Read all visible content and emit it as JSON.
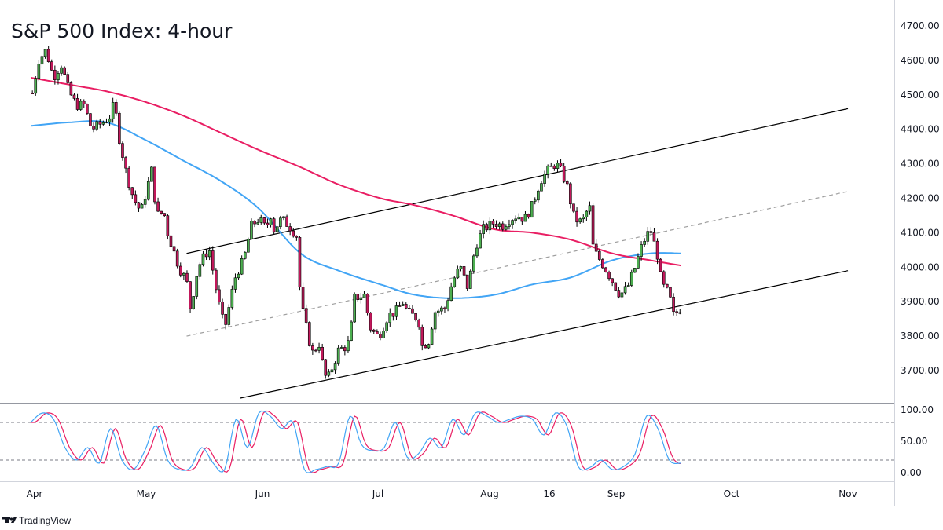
{
  "title": "S&P 500 Index: 4-hour",
  "brand": {
    "logo": "tradingview-logo",
    "name": "TradingView"
  },
  "colors": {
    "up": "#4caf50",
    "down": "#c2185b",
    "ma_fast": "#42a5f5",
    "ma_slow": "#e91e63",
    "stoch_k": "#42a5f5",
    "stoch_d": "#e91e63",
    "channel": "#000000",
    "midline": "#9e9e9e"
  },
  "chart_data": [
    {
      "type": "candlestick",
      "title": "S&P 500 Index: 4-hour",
      "x_ticks": [
        "Apr",
        "May",
        "Jun",
        "Jul",
        "Aug",
        "16",
        "Sep",
        "Oct",
        "Nov"
      ],
      "y_ticks": [
        "4700.00",
        "4600.00",
        "4500.00",
        "4400.00",
        "4300.00",
        "4200.00",
        "4100.00",
        "4000.00",
        "3900.00",
        "3800.00",
        "3700.00"
      ],
      "ylim": [
        3625,
        4735
      ],
      "price_path": [
        [
          "Mar 31",
          4480
        ],
        [
          "Apr 2",
          4600
        ],
        [
          "Apr 4",
          4630
        ],
        [
          "Apr 6",
          4550
        ],
        [
          "Apr 8",
          4590
        ],
        [
          "Apr 10",
          4510
        ],
        [
          "Apr 12",
          4470
        ],
        [
          "Apr 14",
          4470
        ],
        [
          "Apr 16",
          4400
        ],
        [
          "Apr 19",
          4420
        ],
        [
          "Apr 21",
          4440
        ],
        [
          "Apr 22",
          4480
        ],
        [
          "Apr 23",
          4390
        ],
        [
          "Apr 25",
          4280
        ],
        [
          "Apr 27",
          4200
        ],
        [
          "Apr 29",
          4160
        ],
        [
          "May 2",
          4290
        ],
        [
          "May 3",
          4150
        ],
        [
          "May 5",
          4160
        ],
        [
          "May 6",
          4100
        ],
        [
          "May 9",
          4000
        ],
        [
          "May 11",
          3960
        ],
        [
          "May 12",
          3880
        ],
        [
          "May 14",
          4000
        ],
        [
          "May 16",
          4040
        ],
        [
          "May 17",
          4050
        ],
        [
          "May 19",
          3920
        ],
        [
          "May 21",
          3820
        ],
        [
          "May 23",
          3930
        ],
        [
          "May 24",
          3980
        ],
        [
          "May 26",
          4020
        ],
        [
          "May 28",
          4120
        ],
        [
          "May 30",
          4140
        ],
        [
          "Jun 1",
          4110
        ],
        [
          "Jun 2",
          4160
        ],
        [
          "Jun 3",
          4110
        ],
        [
          "Jun 5",
          4140
        ],
        [
          "Jun 7",
          4120
        ],
        [
          "Jun 9",
          4090
        ],
        [
          "Jun 10",
          3900
        ],
        [
          "Jun 13",
          3750
        ],
        [
          "Jun 15",
          3780
        ],
        [
          "Jun 16",
          3700
        ],
        [
          "Jun 17",
          3670
        ],
        [
          "Jun 20",
          3760
        ],
        [
          "Jun 22",
          3770
        ],
        [
          "Jun 23",
          3790
        ],
        [
          "Jun 24",
          3910
        ],
        [
          "Jun 27",
          3920
        ],
        [
          "Jun 28",
          3830
        ],
        [
          "Jun 30",
          3800
        ],
        [
          "Jul 1",
          3810
        ],
        [
          "Jul 3",
          3860
        ],
        [
          "Jul 5",
          3870
        ],
        [
          "Jul 7",
          3900
        ],
        [
          "Jul 8",
          3870
        ],
        [
          "Jul 11",
          3850
        ],
        [
          "Jul 12",
          3770
        ],
        [
          "Jul 14",
          3790
        ],
        [
          "Jul 15",
          3870
        ],
        [
          "Jul 18",
          3880
        ],
        [
          "Jul 20",
          3960
        ],
        [
          "Jul 22",
          4000
        ],
        [
          "Jul 24",
          3940
        ],
        [
          "Jul 26",
          4060
        ],
        [
          "Jul 28",
          4110
        ],
        [
          "Jul 31",
          4130
        ],
        [
          "Aug 2",
          4120
        ],
        [
          "Aug 4",
          4140
        ],
        [
          "Aug 6",
          4150
        ],
        [
          "Aug 8",
          4140
        ],
        [
          "Aug 10",
          4180
        ],
        [
          "Aug 12",
          4250
        ],
        [
          "Aug 14",
          4280
        ],
        [
          "Aug 16",
          4300
        ],
        [
          "Aug 17",
          4290
        ],
        [
          "Aug 19",
          4240
        ],
        [
          "Aug 21",
          4140
        ],
        [
          "Aug 23",
          4130
        ],
        [
          "Aug 25",
          4180
        ],
        [
          "Aug 26",
          4050
        ],
        [
          "Aug 29",
          4000
        ],
        [
          "Aug 31",
          3960
        ],
        [
          "Sep 1",
          3940
        ],
        [
          "Sep 2",
          3920
        ],
        [
          "Sep 4",
          3940
        ],
        [
          "Sep 6",
          4000
        ],
        [
          "Sep 8",
          4070
        ],
        [
          "Sep 10",
          4110
        ],
        [
          "Sep 12",
          4030
        ],
        [
          "Sep 13",
          3950
        ],
        [
          "Sep 15",
          3920
        ],
        [
          "Sep 16",
          3860
        ],
        [
          "Sep 18",
          3880
        ]
      ],
      "ma_fast_path": [
        [
          "Mar 31",
          4410
        ],
        [
          "Apr 10",
          4420
        ],
        [
          "Apr 20",
          4420
        ],
        [
          "Apr 30",
          4370
        ],
        [
          "May 10",
          4310
        ],
        [
          "May 20",
          4250
        ],
        [
          "May 30",
          4170
        ],
        [
          "Jun 10",
          4040
        ],
        [
          "Jun 20",
          3990
        ],
        [
          "Jul 1",
          3950
        ],
        [
          "Jul 10",
          3920
        ],
        [
          "Jul 20",
          3910
        ],
        [
          "Jul 31",
          3920
        ],
        [
          "Aug 10",
          3950
        ],
        [
          "Aug 20",
          3970
        ],
        [
          "Aug 31",
          4020
        ],
        [
          "Sep 10",
          4040
        ],
        [
          "Sep 18",
          4040
        ]
      ],
      "ma_slow_path": [
        [
          "Mar 31",
          4550
        ],
        [
          "Apr 10",
          4530
        ],
        [
          "Apr 20",
          4510
        ],
        [
          "Apr 30",
          4480
        ],
        [
          "May 10",
          4440
        ],
        [
          "May 20",
          4390
        ],
        [
          "May 30",
          4340
        ],
        [
          "Jun 10",
          4290
        ],
        [
          "Jun 20",
          4240
        ],
        [
          "Jul 1",
          4200
        ],
        [
          "Jul 10",
          4180
        ],
        [
          "Jul 20",
          4150
        ],
        [
          "Jul 31",
          4110
        ],
        [
          "Aug 10",
          4100
        ],
        [
          "Aug 20",
          4080
        ],
        [
          "Aug 31",
          4040
        ],
        [
          "Sep 10",
          4020
        ],
        [
          "Sep 18",
          4005
        ]
      ],
      "channel": {
        "upper": [
          [
            "May 11",
            4040
          ],
          [
            "Nov 1",
            4460
          ]
        ],
        "middle": [
          [
            "May 11",
            3800
          ],
          [
            "Nov 1",
            4220
          ]
        ],
        "lower": [
          [
            "May 25",
            3620
          ],
          [
            "Nov 1",
            3990
          ]
        ]
      }
    },
    {
      "type": "line",
      "series": [
        {
          "name": "",
          "values": "stochastic oscillator %K"
        },
        {
          "name": "",
          "values": "stochastic oscillator %D"
        }
      ],
      "y_ticks": [
        "100.00",
        "50.00",
        "0.00"
      ],
      "ylim": [
        -5,
        105
      ],
      "reference_lines": [
        80,
        20
      ],
      "k_path": [
        [
          "Mar 31",
          80
        ],
        [
          "Apr 3",
          95
        ],
        [
          "Apr 6",
          85
        ],
        [
          "Apr 9",
          40
        ],
        [
          "Apr 12",
          20
        ],
        [
          "Apr 15",
          40
        ],
        [
          "Apr 18",
          15
        ],
        [
          "Apr 21",
          70
        ],
        [
          "Apr 24",
          20
        ],
        [
          "Apr 27",
          5
        ],
        [
          "Apr 30",
          35
        ],
        [
          "May 3",
          75
        ],
        [
          "May 6",
          20
        ],
        [
          "May 9",
          5
        ],
        [
          "May 12",
          8
        ],
        [
          "May 15",
          40
        ],
        [
          "May 18",
          15
        ],
        [
          "May 21",
          5
        ],
        [
          "May 24",
          85
        ],
        [
          "May 27",
          40
        ],
        [
          "May 30",
          95
        ],
        [
          "Jun 2",
          90
        ],
        [
          "Jun 5",
          70
        ],
        [
          "Jun 8",
          80
        ],
        [
          "Jun 11",
          5
        ],
        [
          "Jun 14",
          5
        ],
        [
          "Jun 17",
          10
        ],
        [
          "Jun 20",
          15
        ],
        [
          "Jun 23",
          90
        ],
        [
          "Jun 26",
          45
        ],
        [
          "Jun 29",
          35
        ],
        [
          "Jul 2",
          40
        ],
        [
          "Jul 5",
          80
        ],
        [
          "Jul 8",
          25
        ],
        [
          "Jul 11",
          30
        ],
        [
          "Jul 14",
          55
        ],
        [
          "Jul 17",
          40
        ],
        [
          "Jul 20",
          85
        ],
        [
          "Jul 23",
          60
        ],
        [
          "Jul 26",
          95
        ],
        [
          "Jul 29",
          90
        ],
        [
          "Aug 1",
          80
        ],
        [
          "Aug 4",
          85
        ],
        [
          "Aug 7",
          90
        ],
        [
          "Aug 10",
          85
        ],
        [
          "Aug 13",
          60
        ],
        [
          "Aug 16",
          95
        ],
        [
          "Aug 19",
          75
        ],
        [
          "Aug 22",
          10
        ],
        [
          "Aug 25",
          8
        ],
        [
          "Aug 28",
          20
        ],
        [
          "Aug 31",
          5
        ],
        [
          "Sep 3",
          10
        ],
        [
          "Sep 6",
          30
        ],
        [
          "Sep 9",
          90
        ],
        [
          "Sep 12",
          70
        ],
        [
          "Sep 15",
          20
        ],
        [
          "Sep 18",
          15
        ]
      ]
    }
  ]
}
